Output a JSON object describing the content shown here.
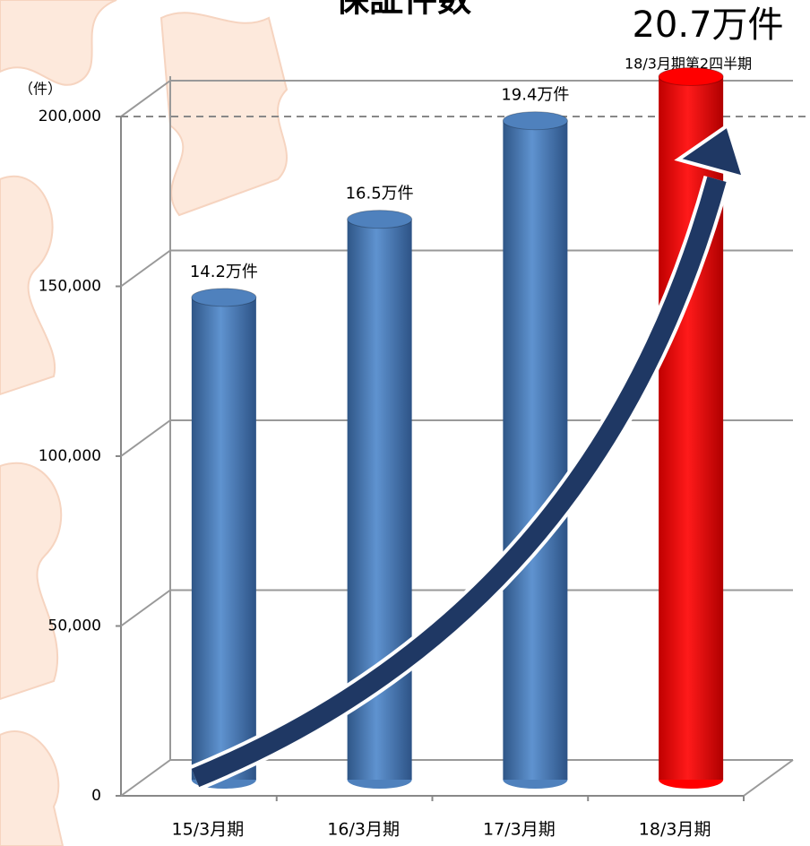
{
  "chart_data": {
    "type": "bar",
    "title": "保証件数",
    "y_unit": "（件）",
    "categories": [
      "15/3月期",
      "16/3月期",
      "17/3月期",
      "18/3月期"
    ],
    "values": [
      142000,
      165000,
      194000,
      207000
    ],
    "value_labels": [
      "14.2万件",
      "16.5万件",
      "19.4万件",
      "20.7万件"
    ],
    "colors": [
      "#4f81bd",
      "#4f81bd",
      "#4f81bd",
      "#ff0000"
    ],
    "annotation": "18/3月期第2四半期",
    "ylim": [
      0,
      200000
    ],
    "yticks": [
      0,
      {
        "value": 50000,
        "label": "50,000"
      },
      {
        "value": 100000,
        "label": "100,000"
      },
      {
        "value": 150000,
        "label": "150,000"
      },
      {
        "value": 200000,
        "label": "200,000"
      }
    ],
    "reference_line": 200000,
    "grid": true
  }
}
